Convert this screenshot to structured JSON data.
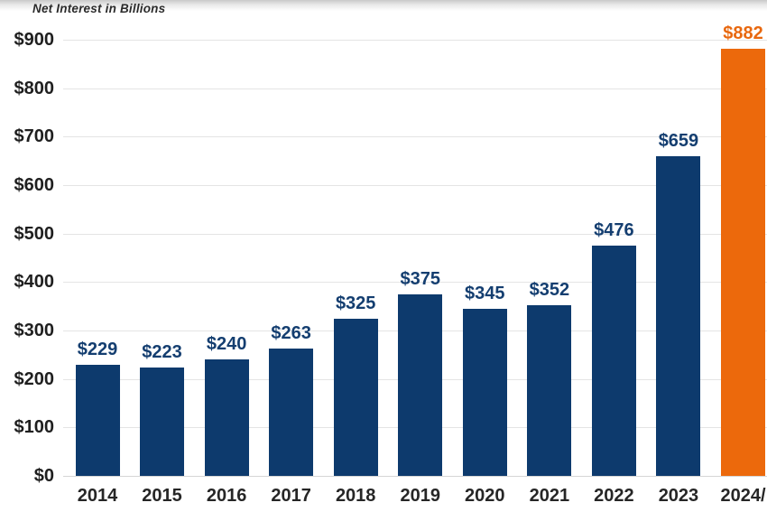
{
  "title": "Net Interest in Billions",
  "colors": {
    "bar": "#0d3a6d",
    "bar_highlight": "#ec690c",
    "value_label": "#143e70",
    "value_label_highlight": "#e8680f",
    "gridline": "#e4e4e4",
    "axis_line": "#d6d6d6",
    "tick_text": "#1f1f1f"
  },
  "chart_data": {
    "type": "bar",
    "title": "Net Interest in Billions",
    "categories": [
      "2014",
      "2015",
      "2016",
      "2017",
      "2018",
      "2019",
      "2020",
      "2021",
      "2022",
      "2023",
      "2024/"
    ],
    "values": [
      229,
      223,
      240,
      263,
      325,
      375,
      345,
      352,
      476,
      659,
      882
    ],
    "value_labels": [
      "$229",
      "$223",
      "$240",
      "$263",
      "$325",
      "$375",
      "$345",
      "$352",
      "$476",
      "$659",
      "$882"
    ],
    "highlight_index": 10,
    "xlabel": "",
    "ylabel": "",
    "ylim": [
      0,
      900
    ],
    "y_tick_step": 100,
    "y_tick_labels": [
      "$0",
      "$100",
      "$200",
      "$300",
      "$400",
      "$500",
      "$600",
      "$700",
      "$800",
      "$900"
    ],
    "grid": "horizontal",
    "legend": "none"
  }
}
